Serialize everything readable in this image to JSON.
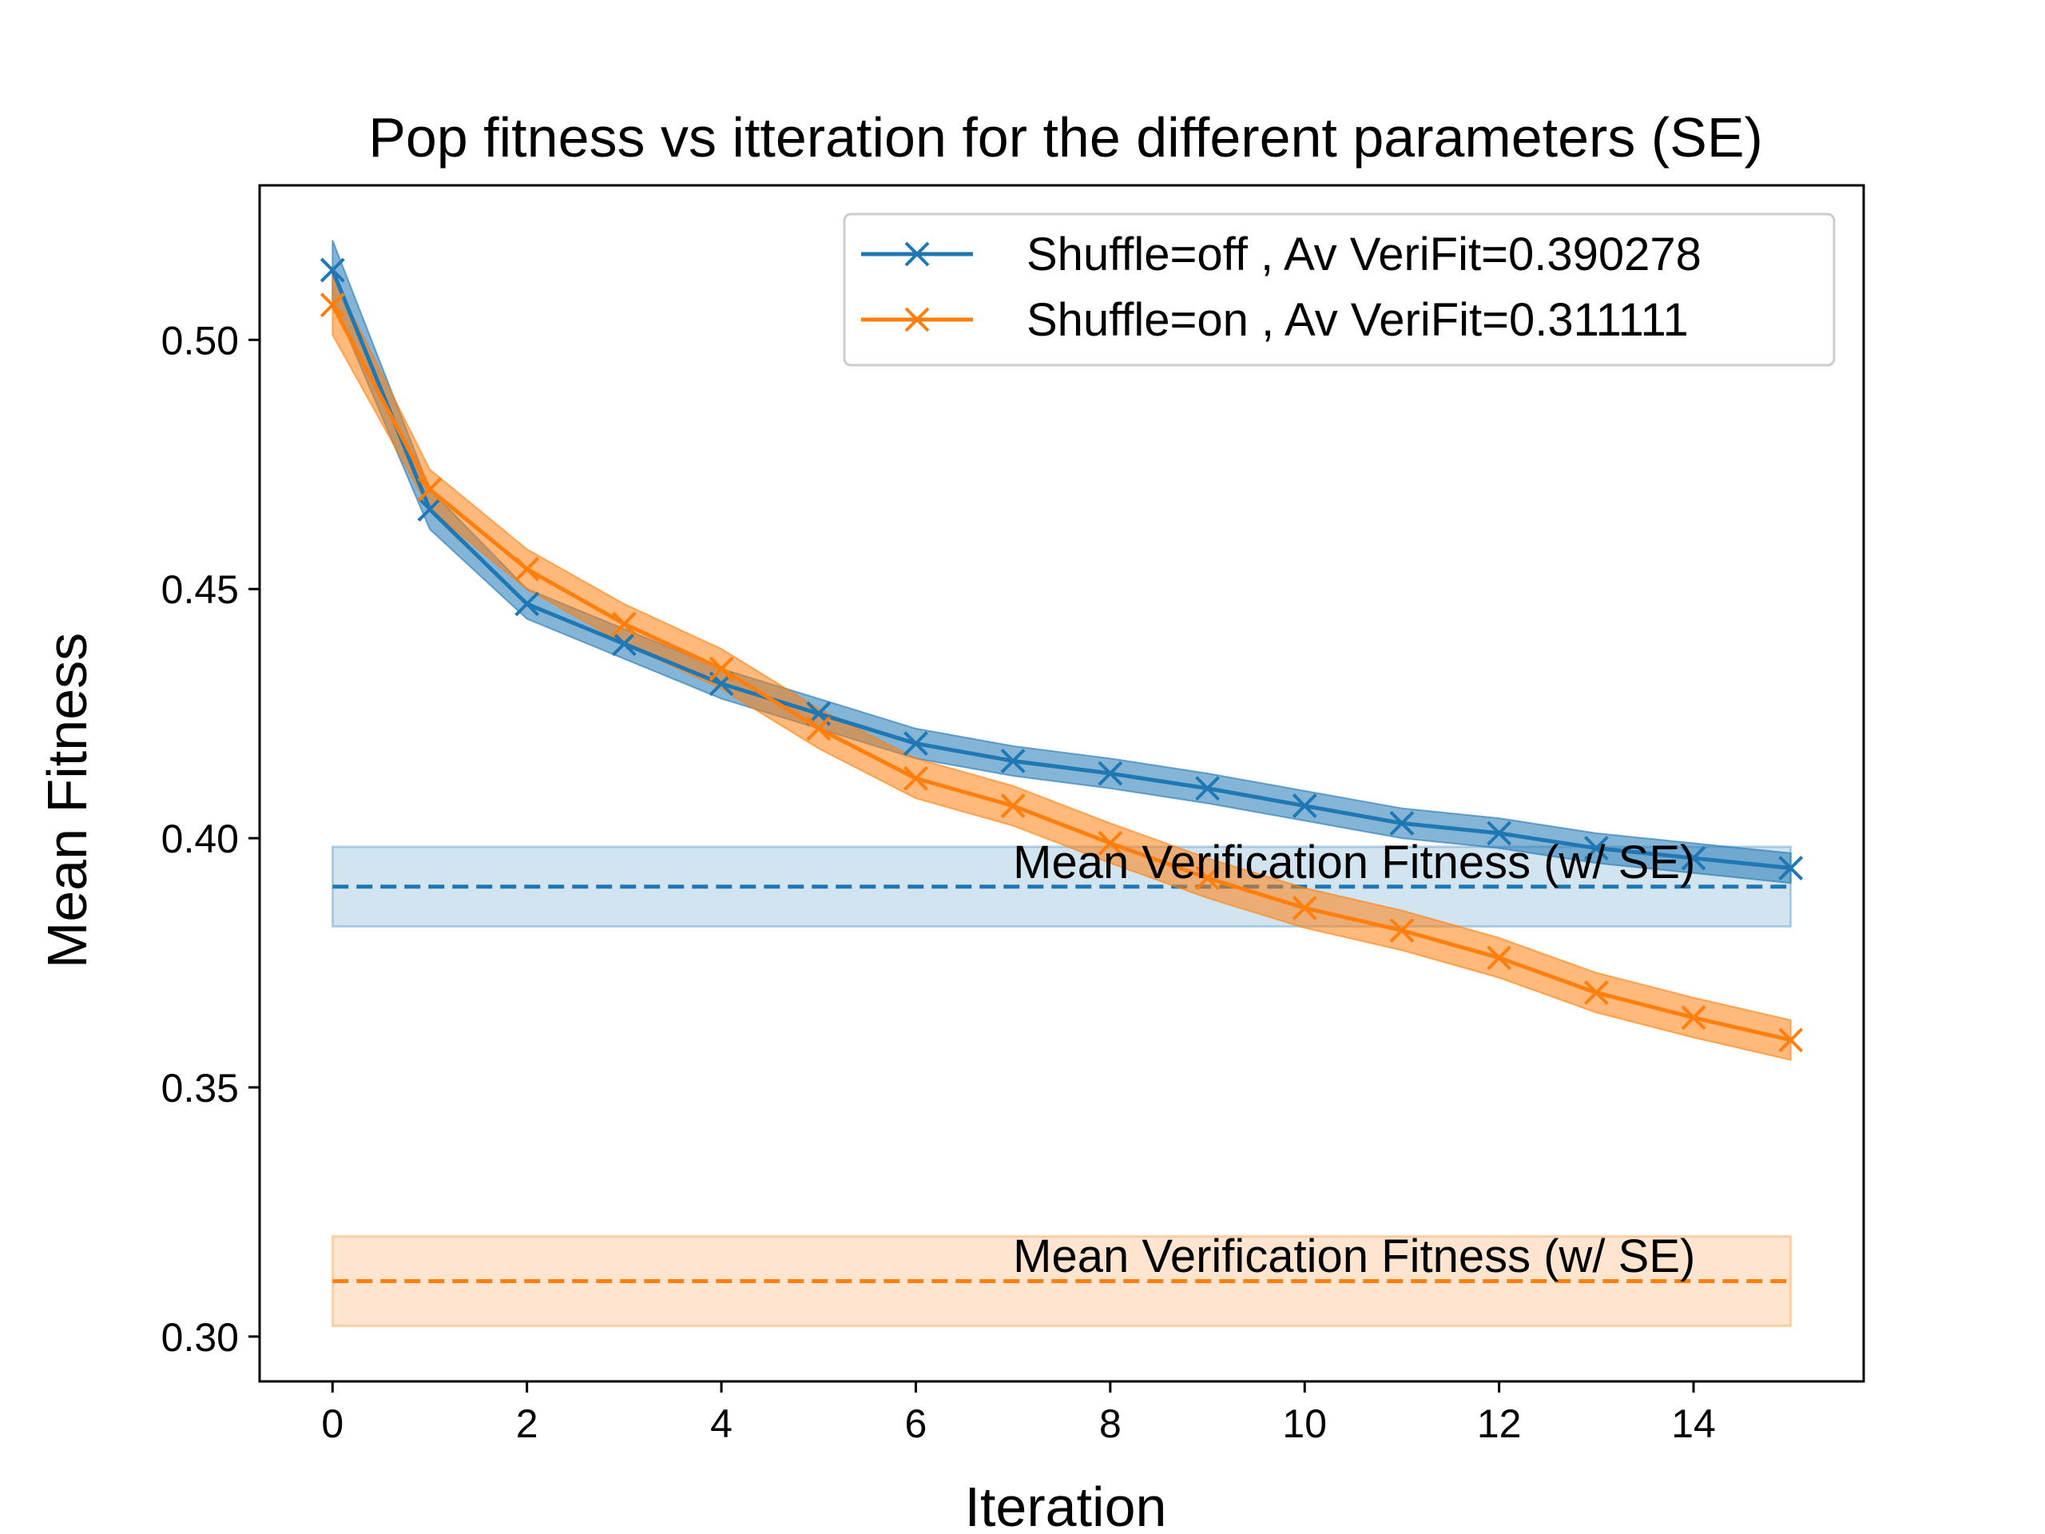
{
  "chart_data": {
    "type": "line",
    "title": "Pop fitness vs itteration for the different parameters (SE)",
    "xlabel": "Iteration",
    "ylabel": "Mean Fitness",
    "xlim": [
      -0.75,
      15.75
    ],
    "ylim": [
      0.291,
      0.531
    ],
    "xticks": [
      0,
      2,
      4,
      6,
      8,
      10,
      12,
      14
    ],
    "yticks": [
      0.3,
      0.35,
      0.4,
      0.45,
      0.5
    ],
    "ytick_labels": [
      "0.30",
      "0.35",
      "0.40",
      "0.45",
      "0.50"
    ],
    "grid": false,
    "legend": "top-right",
    "x": [
      0,
      1,
      2,
      3,
      4,
      5,
      6,
      7,
      8,
      9,
      10,
      11,
      12,
      13,
      14,
      15
    ],
    "series": [
      {
        "name": "Shuffle=off , Av VeriFit=0.390278",
        "color": "#1f77b4",
        "marker": "x",
        "values": [
          0.514,
          0.466,
          0.447,
          0.439,
          0.431,
          0.425,
          0.419,
          0.4155,
          0.413,
          0.41,
          0.4065,
          0.403,
          0.401,
          0.398,
          0.396,
          0.394
        ],
        "se": [
          0.006,
          0.004,
          0.003,
          0.003,
          0.003,
          0.003,
          0.003,
          0.003,
          0.003,
          0.003,
          0.003,
          0.003,
          0.003,
          0.003,
          0.003,
          0.003
        ],
        "verification_mean": 0.390278,
        "verification_se": 0.008
      },
      {
        "name": "Shuffle=on , Av VeriFit=0.311111",
        "color": "#ff7f0e",
        "marker": "x",
        "values": [
          0.507,
          0.47,
          0.454,
          0.443,
          0.434,
          0.422,
          0.412,
          0.4065,
          0.399,
          0.392,
          0.386,
          0.3815,
          0.376,
          0.369,
          0.364,
          0.3595
        ],
        "se": [
          0.006,
          0.004,
          0.004,
          0.004,
          0.004,
          0.004,
          0.004,
          0.004,
          0.004,
          0.004,
          0.004,
          0.004,
          0.004,
          0.004,
          0.004,
          0.004
        ],
        "verification_mean": 0.311111,
        "verification_se": 0.009
      }
    ],
    "annotations": [
      {
        "text": "Mean Verification Fitness (w/ SE)",
        "x": 7,
        "y": 0.392
      },
      {
        "text": "Mean Verification Fitness (w/ SE)",
        "x": 7,
        "y": 0.313
      }
    ]
  }
}
